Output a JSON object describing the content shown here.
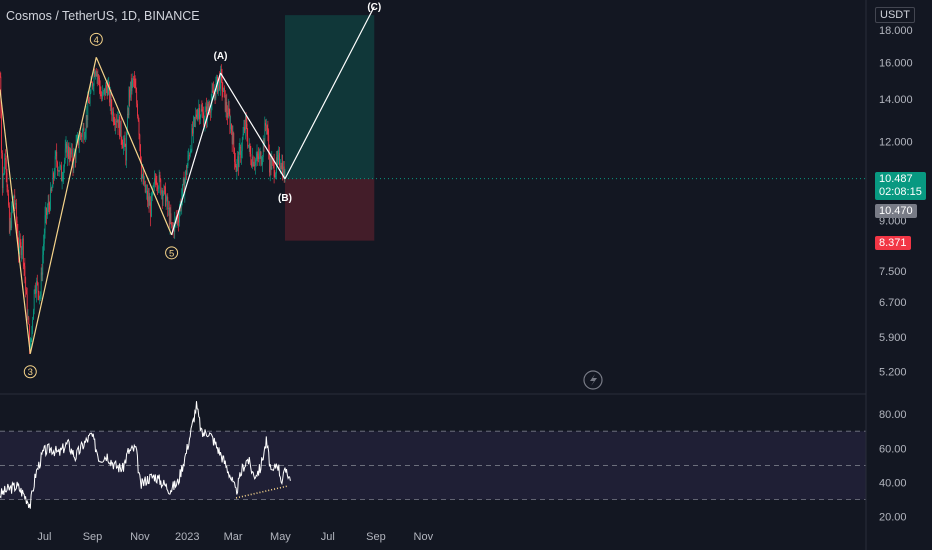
{
  "header": {
    "title": "Cosmos / TetherUS, 1D, BINANCE"
  },
  "chart_data": {
    "type": "line",
    "title": "Cosmos / TetherUS, 1D, BINANCE",
    "currency": "USDT",
    "ylim": [
      4.9,
      19.5
    ],
    "y_scale": "log",
    "price_ticks": [
      "18.000",
      "16.000",
      "14.000",
      "12.000",
      "9.000",
      "7.500",
      "6.700",
      "5.900",
      "5.200"
    ],
    "x_ticks": [
      "Jul",
      "Sep",
      "Nov",
      "2023",
      "Mar",
      "May",
      "Jul",
      "Sep",
      "Nov"
    ],
    "price_labels": {
      "current": "10.487",
      "countdown": "02:08:15",
      "prev": "10.470",
      "stop": "8.371"
    },
    "elliott_waves": [
      {
        "label": "3",
        "date": "2022-06-18",
        "price": 5.55
      },
      {
        "label": "4",
        "date": "2022-09-11",
        "price": 16.3
      },
      {
        "label": "5",
        "date": "2022-12-17",
        "price": 8.55
      },
      {
        "label": "(A)",
        "date": "2023-02-18",
        "price": 15.4
      },
      {
        "label": "(B)",
        "date": "2023-05-12",
        "price": 10.48
      },
      {
        "label": "(C)",
        "date": "2023-09-04",
        "price": 19.6
      }
    ],
    "position": {
      "entry": 10.48,
      "target": 19.0,
      "stop": 8.371
    },
    "price_series": [
      [
        "2022-05-10",
        15.2
      ],
      [
        "2022-05-13",
        10.2
      ],
      [
        "2022-05-17",
        11.6
      ],
      [
        "2022-05-22",
        8.6
      ],
      [
        "2022-05-28",
        9.9
      ],
      [
        "2022-06-03",
        8.1
      ],
      [
        "2022-06-08",
        8.3
      ],
      [
        "2022-06-13",
        6.7
      ],
      [
        "2022-06-18",
        5.6
      ],
      [
        "2022-06-24",
        7.2
      ],
      [
        "2022-07-01",
        6.9
      ],
      [
        "2022-07-07",
        9.0
      ],
      [
        "2022-07-15",
        9.9
      ],
      [
        "2022-07-21",
        11.3
      ],
      [
        "2022-07-28",
        10.6
      ],
      [
        "2022-08-04",
        11.7
      ],
      [
        "2022-08-12",
        11.2
      ],
      [
        "2022-08-20",
        12.2
      ],
      [
        "2022-08-27",
        12.6
      ],
      [
        "2022-09-03",
        14.2
      ],
      [
        "2022-09-10",
        15.9
      ],
      [
        "2022-09-18",
        14.0
      ],
      [
        "2022-09-25",
        14.7
      ],
      [
        "2022-10-02",
        13.3
      ],
      [
        "2022-10-08",
        13.1
      ],
      [
        "2022-10-14",
        12.2
      ],
      [
        "2022-10-19",
        11.5
      ],
      [
        "2022-10-23",
        14.2
      ],
      [
        "2022-10-29",
        15.0
      ],
      [
        "2022-11-04",
        13.2
      ],
      [
        "2022-11-08",
        10.8
      ],
      [
        "2022-11-12",
        10.1
      ],
      [
        "2022-11-20",
        9.4
      ],
      [
        "2022-11-27",
        10.6
      ],
      [
        "2022-12-03",
        10.2
      ],
      [
        "2022-12-09",
        9.8
      ],
      [
        "2022-12-17",
        8.7
      ],
      [
        "2022-12-26",
        9.2
      ],
      [
        "2023-01-04",
        10.6
      ],
      [
        "2023-01-12",
        12.2
      ],
      [
        "2023-01-20",
        13.6
      ],
      [
        "2023-01-28",
        13.1
      ],
      [
        "2023-02-06",
        13.9
      ],
      [
        "2023-02-13",
        14.7
      ],
      [
        "2023-02-18",
        15.1
      ],
      [
        "2023-02-25",
        13.6
      ],
      [
        "2023-03-04",
        12.6
      ],
      [
        "2023-03-10",
        10.9
      ],
      [
        "2023-03-16",
        11.6
      ],
      [
        "2023-03-22",
        12.8
      ],
      [
        "2023-03-28",
        11.4
      ],
      [
        "2023-04-05",
        11.2
      ],
      [
        "2023-04-12",
        11.4
      ],
      [
        "2023-04-18",
        13.0
      ],
      [
        "2023-04-22",
        11.1
      ],
      [
        "2023-04-30",
        10.9
      ],
      [
        "2023-05-06",
        11.3
      ],
      [
        "2023-05-12",
        10.487
      ]
    ],
    "rsi": {
      "ticks": [
        "80.00",
        "60.00",
        "40.00",
        "20.00"
      ],
      "ylim": [
        14,
        90
      ],
      "bands": [
        30,
        50,
        70
      ],
      "series": [
        [
          "2022-05-10",
          33
        ],
        [
          "2022-05-20",
          36
        ],
        [
          "2022-06-01",
          38
        ],
        [
          "2022-06-10",
          33
        ],
        [
          "2022-06-18",
          27
        ],
        [
          "2022-06-25",
          45
        ],
        [
          "2022-07-05",
          58
        ],
        [
          "2022-07-15",
          60
        ],
        [
          "2022-07-25",
          57
        ],
        [
          "2022-08-05",
          63
        ],
        [
          "2022-08-15",
          55
        ],
        [
          "2022-08-25",
          62
        ],
        [
          "2022-09-05",
          68
        ],
        [
          "2022-09-15",
          54
        ],
        [
          "2022-09-25",
          56
        ],
        [
          "2022-10-05",
          50
        ],
        [
          "2022-10-15",
          48
        ],
        [
          "2022-10-22",
          58
        ],
        [
          "2022-11-01",
          60
        ],
        [
          "2022-11-07",
          38
        ],
        [
          "2022-11-15",
          42
        ],
        [
          "2022-11-25",
          44
        ],
        [
          "2022-12-05",
          40
        ],
        [
          "2022-12-15",
          36
        ],
        [
          "2022-12-25",
          40
        ],
        [
          "2023-01-05",
          58
        ],
        [
          "2023-01-12",
          72
        ],
        [
          "2023-01-18",
          85
        ],
        [
          "2023-01-25",
          68
        ],
        [
          "2023-02-02",
          70
        ],
        [
          "2023-02-10",
          64
        ],
        [
          "2023-02-20",
          55
        ],
        [
          "2023-03-01",
          46
        ],
        [
          "2023-03-10",
          34
        ],
        [
          "2023-03-18",
          48
        ],
        [
          "2023-03-25",
          54
        ],
        [
          "2023-04-02",
          44
        ],
        [
          "2023-04-10",
          48
        ],
        [
          "2023-04-18",
          64
        ],
        [
          "2023-04-25",
          44
        ],
        [
          "2023-05-02",
          52
        ],
        [
          "2023-05-08",
          41
        ],
        [
          "2023-05-14",
          48
        ],
        [
          "2023-05-20",
          40
        ]
      ],
      "divergence": [
        [
          "2023-03-10",
          31
        ],
        [
          "2023-05-16",
          38
        ]
      ]
    }
  }
}
